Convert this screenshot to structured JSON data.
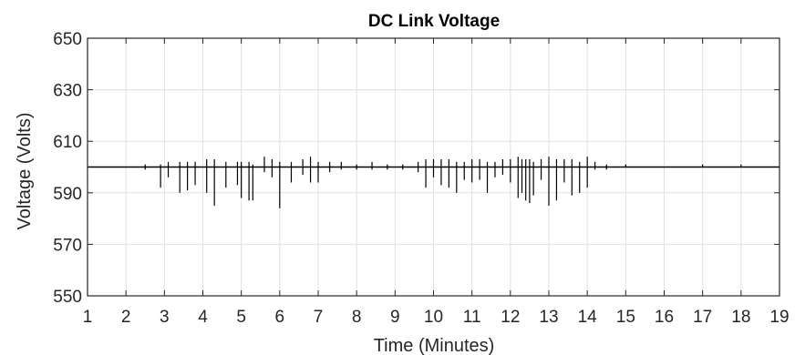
{
  "chart_data": {
    "type": "line",
    "title": "DC Link Voltage",
    "xlabel": "Time (Minutes)",
    "ylabel": "Voltage (Volts)",
    "xlim": [
      1,
      19
    ],
    "ylim": [
      550,
      650
    ],
    "xticks": [
      "1",
      "2",
      "3",
      "4",
      "5",
      "6",
      "7",
      "8",
      "9",
      "10",
      "11",
      "12",
      "13",
      "14",
      "15",
      "16",
      "17",
      "18",
      "19"
    ],
    "yticks": [
      "550",
      "570",
      "590",
      "610",
      "630",
      "650"
    ],
    "grid": true,
    "legend": "none",
    "colors": {
      "line": "#000000",
      "grid": "#e0e0e0",
      "axis": "#262626"
    },
    "series": [
      {
        "name": "",
        "baseline": 600,
        "x": [
          1.0,
          2.5,
          2.9,
          3.1,
          3.4,
          3.6,
          3.8,
          4.1,
          4.3,
          4.6,
          4.9,
          5.0,
          5.2,
          5.3,
          5.6,
          5.8,
          6.0,
          6.3,
          6.6,
          6.8,
          7.0,
          7.3,
          7.6,
          8.0,
          8.4,
          8.8,
          9.2,
          9.6,
          9.8,
          10.0,
          10.2,
          10.4,
          10.6,
          10.8,
          11.0,
          11.2,
          11.4,
          11.6,
          11.8,
          12.0,
          12.2,
          12.3,
          12.4,
          12.5,
          12.6,
          12.8,
          13.0,
          13.2,
          13.4,
          13.6,
          13.8,
          14.0,
          14.2,
          14.5,
          15.0,
          16.0,
          17.0,
          18.0,
          19.0
        ],
        "spike_min": [
          600,
          599,
          592,
          596,
          590,
          591,
          593,
          590,
          585,
          592,
          593,
          588,
          587,
          587,
          598,
          596,
          584,
          594,
          597,
          594,
          594,
          598,
          599,
          599,
          599,
          599,
          599,
          598,
          592,
          596,
          593,
          592,
          590,
          595,
          594,
          595,
          590,
          596,
          597,
          594,
          588,
          590,
          587,
          586,
          589,
          595,
          585,
          587,
          594,
          589,
          590,
          592,
          599,
          599,
          600,
          600,
          600,
          600,
          600
        ],
        "spike_max": [
          600,
          601,
          601,
          602,
          602,
          602,
          602,
          603,
          603,
          602,
          602,
          602,
          602,
          601,
          604,
          603,
          602,
          602,
          603,
          604,
          602,
          602,
          602,
          601,
          602,
          601,
          601,
          602,
          603,
          603,
          603,
          603,
          602,
          602,
          603,
          603,
          602,
          602,
          603,
          603,
          604,
          603,
          603,
          603,
          602,
          603,
          604,
          603,
          603,
          603,
          602,
          604,
          602,
          601,
          601,
          600,
          601,
          601,
          600
        ]
      }
    ]
  }
}
